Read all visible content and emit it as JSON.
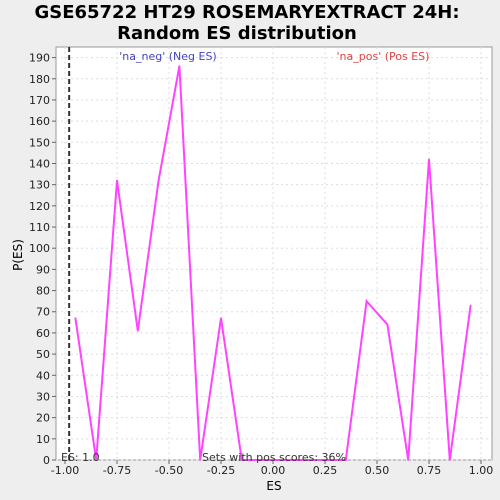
{
  "chart_data": {
    "type": "line",
    "title_line1": "GSE65722 HT29 ROSEMARYEXTRACT 24H:",
    "title_line2": "Random ES distribution",
    "xlabel": "ES",
    "ylabel": "P(ES)",
    "xlim": [
      -1.0,
      1.0
    ],
    "ylim": [
      0,
      195
    ],
    "x_ticks": [
      -1.0,
      -0.75,
      -0.5,
      -0.25,
      0.0,
      0.25,
      0.5,
      0.75,
      1.0
    ],
    "x_tick_labels": [
      "-1.00",
      "-0.75",
      "-0.50",
      "-0.25",
      "0.00",
      "0.25",
      "0.50",
      "0.75",
      "1.00"
    ],
    "y_ticks": [
      0,
      10,
      20,
      30,
      40,
      50,
      60,
      70,
      80,
      90,
      100,
      110,
      120,
      130,
      140,
      150,
      160,
      170,
      180,
      190
    ],
    "grid": true,
    "legend": {
      "neg_label": "'na_neg' (Neg ES)",
      "pos_label": "'na_pos' (Pos ES)",
      "neg_color": "#4444bb",
      "pos_color": "#dd4444"
    },
    "series": [
      {
        "color": "#ff44ff",
        "x": [
          -0.95,
          -0.85,
          -0.75,
          -0.65,
          -0.55,
          -0.45,
          -0.35,
          -0.25,
          -0.15,
          -0.05,
          0.05,
          0.15,
          0.25,
          0.35,
          0.45,
          0.55,
          0.65,
          0.75,
          0.85,
          0.95
        ],
        "y": [
          67,
          0,
          132,
          61,
          132,
          186,
          0,
          67,
          0,
          0,
          0,
          0,
          0,
          0,
          75,
          64,
          0,
          142,
          0,
          73
        ]
      }
    ],
    "es_marker": {
      "x": -0.98,
      "label": "ES: 1.0"
    },
    "annotation": "Sets with pos scores: 36%"
  }
}
